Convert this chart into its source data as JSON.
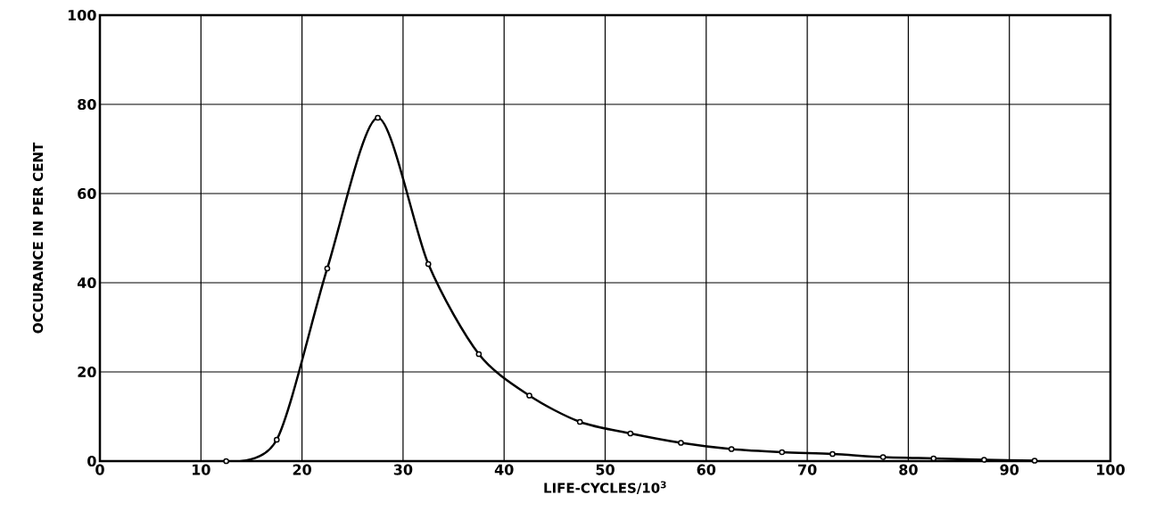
{
  "chart_data": {
    "type": "line",
    "xlabel": "LIFE-CYCLES/10$^{3}$",
    "ylabel": "OCCURANCE IN PER CENT",
    "x": [
      12.5,
      17.5,
      22.5,
      27.5,
      32.5,
      37.5,
      42.5,
      47.5,
      52.5,
      57.5,
      62.5,
      67.5,
      72.5,
      77.5,
      82.5,
      87.5,
      92.5
    ],
    "series": [
      {
        "color": "#000000",
        "values": [
          0,
          4.8,
          43.2,
          77,
          44.2,
          24,
          14.7,
          8.8,
          6.2,
          4.1,
          2.7,
          2.0,
          1.6,
          0.9,
          0.6,
          0.3,
          0.1
        ]
      }
    ],
    "xlim": [
      0,
      100
    ],
    "ylim": [
      0,
      100
    ],
    "xticks": [
      0,
      10,
      20,
      30,
      40,
      50,
      60,
      70,
      80,
      90,
      100
    ],
    "yticks": [
      0,
      20,
      40,
      60,
      80,
      100
    ],
    "grid": true,
    "marker": "circle",
    "line_style": "solid"
  }
}
